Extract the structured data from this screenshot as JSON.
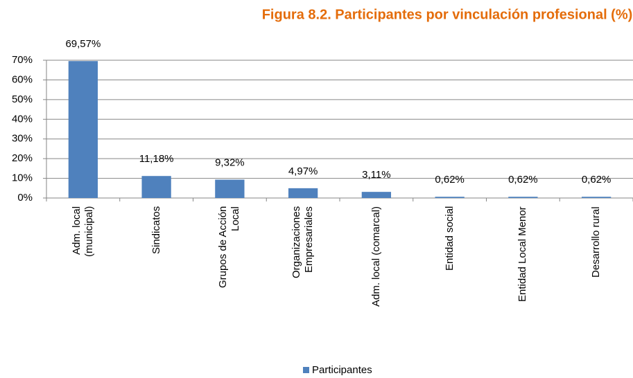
{
  "chart_data": {
    "type": "bar",
    "title": "Figura 8.2. Participantes por vinculación profesional (%)",
    "categories": [
      "Adm. local\n(municipal)",
      "Sindicatos",
      "Grupos de Acción\nLocal",
      "Organizaciones\nEmpresariales",
      "Adm. local (comarcal)",
      "Entidad social",
      "Entidad Local Menor",
      "Desarrollo rural"
    ],
    "series": [
      {
        "name": "Participantes",
        "color": "#4f81bd",
        "values": [
          69.57,
          11.18,
          9.32,
          4.97,
          3.11,
          0.62,
          0.62,
          0.62
        ],
        "value_labels": [
          "69,57%",
          "11,18%",
          "9,32%",
          "4,97%",
          "3,11%",
          "0,62%",
          "0,62%",
          "0,62%"
        ]
      }
    ],
    "ylim": [
      0,
      70
    ],
    "yticks": [
      {
        "value": 0,
        "label": "0%"
      },
      {
        "value": 10,
        "label": "10%"
      },
      {
        "value": 20,
        "label": "20%"
      },
      {
        "value": 30,
        "label": "30%"
      },
      {
        "value": 40,
        "label": "40%"
      },
      {
        "value": 50,
        "label": "50%"
      },
      {
        "value": 60,
        "label": "60%"
      },
      {
        "value": 70,
        "label": "70%"
      }
    ],
    "grid": true,
    "legend": "bottom"
  }
}
